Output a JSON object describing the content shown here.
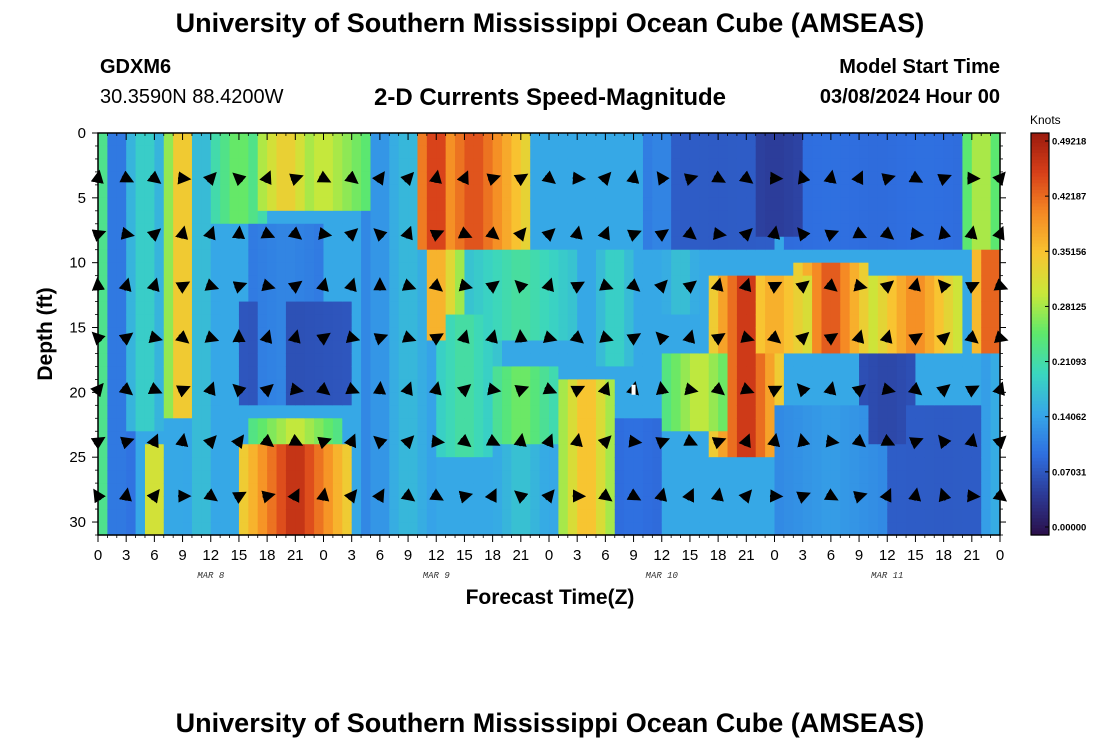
{
  "header": {
    "title": "University of Southern Mississippi Ocean Cube (AMSEAS)",
    "station": "GDXM6",
    "coords": "30.3590N  88.4200W",
    "subtitle": "2-D Currents Speed-Magnitude",
    "start_label": "Model Start Time",
    "start_value": "03/08/2024 Hour 00"
  },
  "footer": {
    "title": "University of Southern Mississippi Ocean Cube (AMSEAS)"
  },
  "colors": {
    "colormap": [
      "#2b0f4a",
      "#2c3a96",
      "#2f6fe0",
      "#36a6e8",
      "#3ad6c0",
      "#5de86c",
      "#c8e83a",
      "#f8c531",
      "#f58a24",
      "#d8401a",
      "#9a1a0d"
    ],
    "arrow": "#000000",
    "marker": "#ffffff"
  },
  "chart_data": {
    "type": "heatmap",
    "title": "2-D Currents Speed-Magnitude",
    "xlabel": "Forecast Time(Z)",
    "ylabel": "Depth (ft)",
    "units": "Knots",
    "x_hours_range": [
      0,
      96
    ],
    "y_depth_range": [
      0,
      31
    ],
    "x_tick_hours": [
      0,
      3,
      6,
      9,
      12,
      15,
      18,
      21,
      24,
      27,
      30,
      33,
      36,
      39,
      42,
      45,
      48,
      51,
      54,
      57,
      60,
      63,
      66,
      69,
      72,
      75,
      78,
      81,
      84,
      87,
      90,
      93,
      96
    ],
    "x_tick_labels": [
      "0",
      "3",
      "6",
      "9",
      "12",
      "15",
      "18",
      "21",
      "0",
      "3",
      "6",
      "9",
      "12",
      "15",
      "18",
      "21",
      "0",
      "3",
      "6",
      "9",
      "12",
      "15",
      "18",
      "21",
      "0",
      "3",
      "6",
      "9",
      "12",
      "15",
      "18",
      "21",
      "0"
    ],
    "day_labels": [
      {
        "hour": 12,
        "label": "MAR 8"
      },
      {
        "hour": 36,
        "label": "MAR 9"
      },
      {
        "hour": 60,
        "label": "MAR 10"
      },
      {
        "hour": 84,
        "label": "MAR 11"
      }
    ],
    "y_ticks": [
      0,
      5,
      10,
      15,
      20,
      25,
      30
    ],
    "colorbar": {
      "range": [
        0,
        0.49218
      ],
      "ticks": [
        0.49218,
        0.42187,
        0.35156,
        0.28125,
        0.21093,
        0.14062,
        0.07031,
        0.0
      ],
      "tick_labels": [
        "0.49218",
        "0.42187",
        "0.35156",
        "0.28125",
        "0.21093",
        "0.14062",
        "0.07031",
        "0.00000"
      ]
    },
    "arrow_depths_ft": [
      3.5,
      7.8,
      11.8,
      15.8,
      19.8,
      23.8,
      28.0
    ],
    "arrow_hours": [
      0,
      3,
      6,
      9,
      12,
      15,
      18,
      21,
      24,
      27,
      30,
      33,
      36,
      39,
      42,
      45,
      48,
      51,
      54,
      57,
      60,
      63,
      66,
      69,
      72,
      75,
      78,
      81,
      84,
      87,
      90,
      93,
      96
    ],
    "speed_features": [
      {
        "h": 0,
        "hw": 2.0,
        "d0": 0,
        "d1": 31,
        "v": 0.24
      },
      {
        "h": 2,
        "hw": 1.6,
        "d0": 0,
        "d1": 31,
        "v": 0.11
      },
      {
        "h": 5,
        "hw": 1.6,
        "d0": 0,
        "d1": 23,
        "v": 0.2
      },
      {
        "h": 6,
        "hw": 1.3,
        "d0": 24,
        "d1": 31,
        "v": 0.34
      },
      {
        "h": 9,
        "hw": 1.5,
        "d0": 0,
        "d1": 22,
        "v": 0.37
      },
      {
        "h": 11,
        "hw": 1.6,
        "d0": 0,
        "d1": 31,
        "v": 0.18
      },
      {
        "h": 11,
        "hw": 1.2,
        "d0": 22,
        "d1": 31,
        "v": 0.12
      },
      {
        "h": 15,
        "hw": 3.0,
        "d0": 0,
        "d1": 7,
        "v": 0.26
      },
      {
        "h": 20,
        "hw": 4.0,
        "d0": 0,
        "d1": 6,
        "v": 0.34
      },
      {
        "h": 20,
        "hw": 4.0,
        "d0": 7,
        "d1": 21,
        "v": 0.12
      },
      {
        "h": 21,
        "hw": 5.5,
        "d0": 13,
        "d1": 21,
        "v": 0.07
      },
      {
        "h": 21,
        "hw": 5.0,
        "d0": 22,
        "d1": 24,
        "v": 0.3
      },
      {
        "h": 21,
        "hw": 5.5,
        "d0": 24.5,
        "d1": 31,
        "v": 0.47
      },
      {
        "h": 24,
        "hw": 6.0,
        "d0": 0,
        "d1": 6,
        "v": 0.3
      },
      {
        "h": 30,
        "hw": 1.5,
        "d0": 0,
        "d1": 31,
        "v": 0.14
      },
      {
        "h": 33,
        "hw": 3.0,
        "d0": 0,
        "d1": 31,
        "v": 0.17
      },
      {
        "h": 36,
        "hw": 3.5,
        "d0": 0,
        "d1": 9,
        "v": 0.46
      },
      {
        "h": 40,
        "hw": 6.0,
        "d0": 0,
        "d1": 9,
        "v": 0.44
      },
      {
        "h": 36,
        "hw": 2.5,
        "d0": 9,
        "d1": 16,
        "v": 0.38
      },
      {
        "h": 39,
        "hw": 4.0,
        "d0": 14,
        "d1": 25,
        "v": 0.22
      },
      {
        "h": 45,
        "hw": 6.0,
        "d0": 9,
        "d1": 16,
        "v": 0.22
      },
      {
        "h": 45,
        "hw": 4.0,
        "d0": 18,
        "d1": 24,
        "v": 0.26
      },
      {
        "h": 45,
        "hw": 3.0,
        "d0": 24,
        "d1": 31,
        "v": 0.18
      },
      {
        "h": 52,
        "hw": 3.0,
        "d0": 19,
        "d1": 31,
        "v": 0.36
      },
      {
        "h": 55,
        "hw": 2.0,
        "d0": 9,
        "d1": 18,
        "v": 0.2
      },
      {
        "h": 57,
        "hw": 2.5,
        "d0": 22,
        "d1": 31,
        "v": 0.1
      },
      {
        "h": 60,
        "hw": 2.0,
        "d0": 0,
        "d1": 9,
        "v": 0.12
      },
      {
        "h": 62,
        "hw": 2.0,
        "d0": 9,
        "d1": 14,
        "v": 0.18
      },
      {
        "h": 66,
        "hw": 6.0,
        "d0": 0,
        "d1": 9,
        "v": 0.08
      },
      {
        "h": 72,
        "hw": 4.0,
        "d0": 0,
        "d1": 8,
        "v": 0.05
      },
      {
        "h": 64,
        "hw": 4.0,
        "d0": 17,
        "d1": 23,
        "v": 0.3
      },
      {
        "h": 69,
        "hw": 3.5,
        "d0": 11,
        "d1": 25,
        "v": 0.47
      },
      {
        "h": 72,
        "hw": 6.0,
        "d0": 11,
        "d1": 17,
        "v": 0.37
      },
      {
        "h": 78,
        "hw": 4.0,
        "d0": 10,
        "d1": 17,
        "v": 0.44
      },
      {
        "h": 78,
        "hw": 5.0,
        "d0": 0,
        "d1": 9,
        "v": 0.1
      },
      {
        "h": 88,
        "hw": 5.0,
        "d0": 0,
        "d1": 9,
        "v": 0.1
      },
      {
        "h": 87,
        "hw": 5.0,
        "d0": 11,
        "d1": 17,
        "v": 0.4
      },
      {
        "h": 94,
        "hw": 2.0,
        "d0": 0,
        "d1": 9,
        "v": 0.3
      },
      {
        "h": 95,
        "hw": 2.0,
        "d0": 9,
        "d1": 17,
        "v": 0.45
      },
      {
        "h": 84,
        "hw": 2.5,
        "d0": 17,
        "d1": 24,
        "v": 0.06
      },
      {
        "h": 78,
        "hw": 6.0,
        "d0": 21,
        "d1": 31,
        "v": 0.14
      },
      {
        "h": 90,
        "hw": 6.0,
        "d0": 21,
        "d1": 31,
        "v": 0.08
      },
      {
        "h": 96,
        "hw": 2.0,
        "d0": 17,
        "d1": 31,
        "v": 0.16
      }
    ],
    "background_speed": 0.15
  }
}
